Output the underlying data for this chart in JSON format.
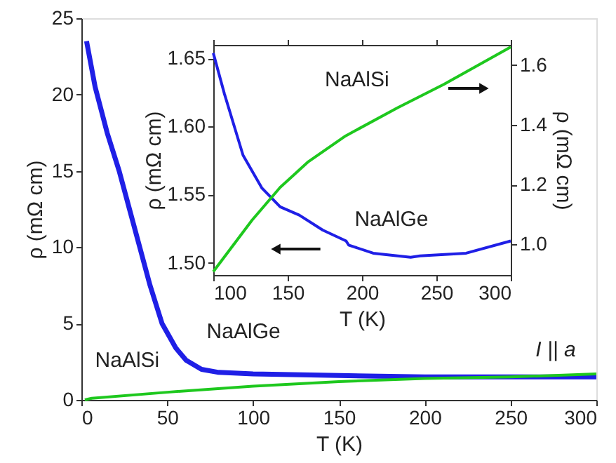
{
  "chart_data": [
    {
      "type": "line",
      "xlabel": "T (K)",
      "ylabel": "ρ (mΩ cm)",
      "xlim": [
        0,
        300
      ],
      "ylim": [
        0,
        25
      ],
      "xticks": [
        0,
        50,
        100,
        150,
        200,
        250,
        300
      ],
      "yticks": [
        0,
        5,
        10,
        15,
        20,
        25
      ],
      "grid": false,
      "annotations": [
        "NaAlSi",
        "NaAlGe",
        "I || a"
      ],
      "series": [
        {
          "color": "#1f1fe6",
          "x": [
            3,
            8,
            15,
            22,
            28,
            34,
            40,
            47,
            55,
            61,
            70,
            80,
            100,
            150,
            200,
            250,
            300
          ],
          "values": [
            23.5,
            20.5,
            17.5,
            15,
            12.5,
            10,
            7.5,
            5,
            3.4,
            2.6,
            2.0,
            1.8,
            1.7,
            1.6,
            1.5,
            1.5,
            1.5
          ]
        },
        {
          "color": "#1ec81e",
          "x": [
            2,
            6,
            50,
            100,
            150,
            200,
            250,
            300
          ],
          "values": [
            0,
            0.1,
            0.5,
            0.9,
            1.2,
            1.4,
            1.5,
            1.7
          ]
        }
      ]
    },
    {
      "type": "line",
      "xlabel": "T (K)",
      "ylabel": "ρ (mΩ cm)",
      "y2label": "ρ (mΩ cm)",
      "xlim": [
        100,
        300
      ],
      "ylim": [
        1.491,
        1.66
      ],
      "y2lim": [
        0.898,
        1.667
      ],
      "xticks": [
        100,
        150,
        200,
        250,
        300
      ],
      "yticks": [
        {
          "value": 1.5,
          "label": "1.50"
        },
        {
          "value": 1.55,
          "label": "1.55"
        },
        {
          "value": 1.6,
          "label": "1.60"
        },
        {
          "value": 1.65,
          "label": "1.65"
        }
      ],
      "y2ticks": [
        {
          "value": 1.0,
          "label": "1.0"
        },
        {
          "value": 1.2,
          "label": "1.2"
        },
        {
          "value": 1.4,
          "label": "1.4"
        },
        {
          "value": 1.6,
          "label": "1.6"
        }
      ],
      "grid": false,
      "annotations": [
        "NaAlSi",
        "NaAlGe"
      ],
      "series": [
        {
          "color": "#1f1fe6",
          "x": [
            100,
            107.5,
            120,
            132.6,
            145,
            157.8,
            173.6,
            189.3,
            191,
            207.5,
            232.7,
            239,
            270,
            300
          ],
          "values": [
            1.654,
            1.624,
            1.579,
            1.555,
            1.541,
            1.535,
            1.524,
            1.516,
            1.513,
            1.507,
            1.504,
            1.505,
            1.507,
            1.516
          ]
        },
        {
          "color": "#1ec81e",
          "axis": "y2",
          "x": [
            100,
            126,
            145,
            164,
            189,
            224,
            255,
            300
          ],
          "values": [
            0.909,
            1.081,
            1.191,
            1.277,
            1.363,
            1.457,
            1.535,
            1.66
          ]
        }
      ]
    }
  ]
}
